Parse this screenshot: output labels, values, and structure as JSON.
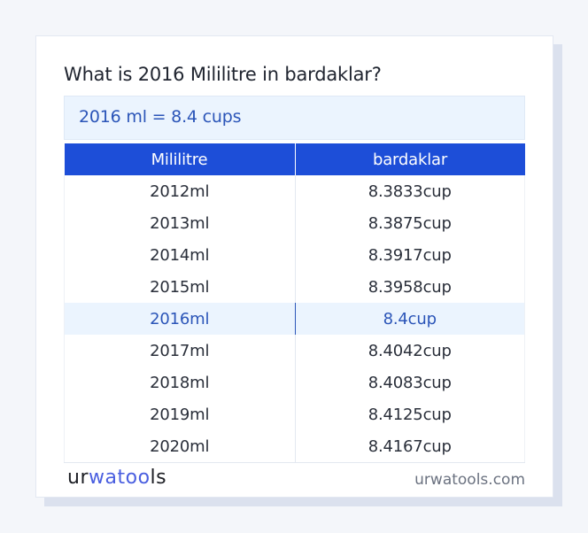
{
  "title": "What is 2016 Mililitre in bardaklar?",
  "result": "2016 ml = 8.4 cups",
  "table": {
    "headers": [
      "Mililitre",
      "bardaklar"
    ],
    "rows": [
      {
        "ml": "2012ml",
        "cup": "8.3833cup"
      },
      {
        "ml": "2013ml",
        "cup": "8.3875cup"
      },
      {
        "ml": "2014ml",
        "cup": "8.3917cup"
      },
      {
        "ml": "2015ml",
        "cup": "8.3958cup"
      },
      {
        "ml": "2016ml",
        "cup": "8.4cup"
      },
      {
        "ml": "2017ml",
        "cup": "8.4042cup"
      },
      {
        "ml": "2018ml",
        "cup": "8.4083cup"
      },
      {
        "ml": "2019ml",
        "cup": "8.4125cup"
      },
      {
        "ml": "2020ml",
        "cup": "8.4167cup"
      }
    ],
    "highlight_index": 4
  },
  "footer": {
    "logo": {
      "part1": "ur",
      "part2": "wat",
      "part3": "oo",
      "part4": "ls"
    },
    "site": "urwatools.com"
  },
  "colors": {
    "accent": "#1d4ed8",
    "highlight_text": "#2b55b8",
    "highlight_bg": "#ebf4fe"
  }
}
